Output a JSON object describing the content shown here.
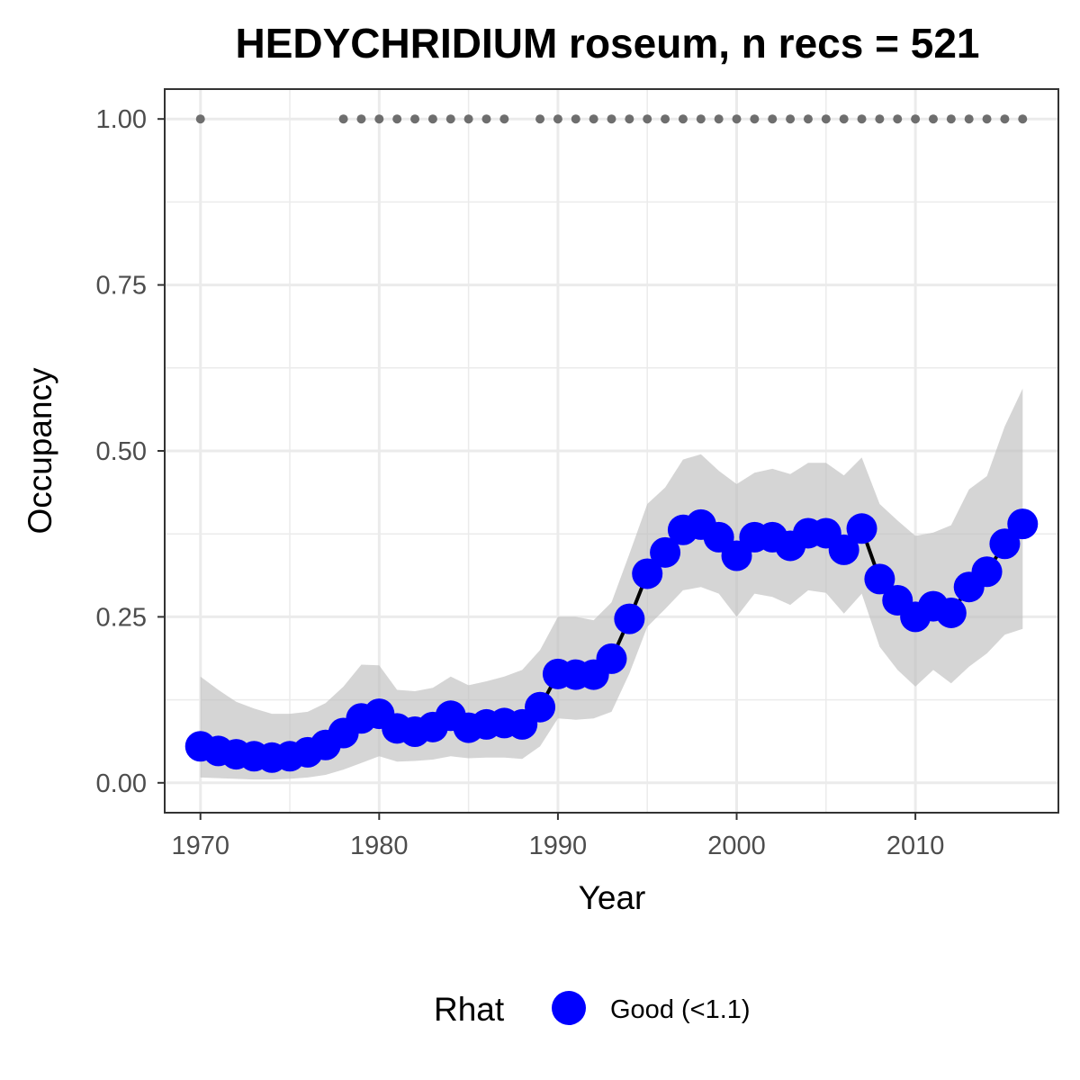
{
  "chart_data": {
    "type": "line",
    "title": "HEDYCHRIDIUM roseum, n recs = 521",
    "xlabel": "Year",
    "ylabel": "Occupancy",
    "xlim": [
      1968,
      2018
    ],
    "ylim": [
      -0.045,
      1.045
    ],
    "xticks": [
      1970,
      1980,
      1990,
      2000,
      2010
    ],
    "xtick_labels": [
      "1970",
      "1980",
      "1990",
      "2000",
      "2010"
    ],
    "yticks": [
      0,
      0.25,
      0.5,
      0.75,
      1
    ],
    "ytick_labels": [
      "0.00",
      "0.25",
      "0.50",
      "0.75",
      "1.00"
    ],
    "grid": true,
    "legend_position": "bottom",
    "legend": {
      "title": "Rhat",
      "entries": [
        {
          "label": "Good (<1.1)",
          "color": "#0000ff"
        }
      ]
    },
    "colors": {
      "line": "#000000",
      "points": "#0000ff",
      "ribbon": "#bfbfbf",
      "record_dots": "#6e6e6e",
      "grid": "#ebebeb",
      "panel_border": "#333333"
    },
    "x": [
      1970,
      1971,
      1972,
      1973,
      1974,
      1975,
      1976,
      1977,
      1978,
      1979,
      1980,
      1981,
      1982,
      1983,
      1984,
      1985,
      1986,
      1987,
      1988,
      1989,
      1990,
      1991,
      1992,
      1993,
      1994,
      1995,
      1996,
      1997,
      1998,
      1999,
      2000,
      2001,
      2002,
      2003,
      2004,
      2005,
      2006,
      2007,
      2008,
      2009,
      2010,
      2011,
      2012,
      2013,
      2014,
      2015,
      2016
    ],
    "series": [
      {
        "name": "Good (<1.1)",
        "values": [
          0.055,
          0.048,
          0.043,
          0.04,
          0.038,
          0.04,
          0.046,
          0.057,
          0.075,
          0.097,
          0.104,
          0.082,
          0.077,
          0.084,
          0.101,
          0.083,
          0.088,
          0.09,
          0.088,
          0.114,
          0.164,
          0.163,
          0.163,
          0.187,
          0.247,
          0.315,
          0.347,
          0.381,
          0.389,
          0.37,
          0.342,
          0.37,
          0.37,
          0.357,
          0.376,
          0.376,
          0.351,
          0.383,
          0.307,
          0.275,
          0.25,
          0.266,
          0.256,
          0.295,
          0.318,
          0.36,
          0.39
        ],
        "lower": [
          0.008,
          0.007,
          0.006,
          0.005,
          0.005,
          0.006,
          0.008,
          0.012,
          0.02,
          0.03,
          0.04,
          0.032,
          0.033,
          0.035,
          0.04,
          0.037,
          0.038,
          0.038,
          0.036,
          0.055,
          0.097,
          0.095,
          0.097,
          0.107,
          0.165,
          0.235,
          0.262,
          0.29,
          0.295,
          0.285,
          0.25,
          0.285,
          0.28,
          0.268,
          0.29,
          0.286,
          0.255,
          0.285,
          0.205,
          0.17,
          0.145,
          0.17,
          0.15,
          0.175,
          0.195,
          0.223,
          0.232
        ],
        "upper": [
          0.16,
          0.14,
          0.122,
          0.112,
          0.104,
          0.104,
          0.107,
          0.12,
          0.145,
          0.178,
          0.177,
          0.14,
          0.138,
          0.143,
          0.16,
          0.147,
          0.153,
          0.16,
          0.17,
          0.2,
          0.25,
          0.25,
          0.245,
          0.272,
          0.345,
          0.42,
          0.445,
          0.487,
          0.495,
          0.47,
          0.45,
          0.467,
          0.473,
          0.465,
          0.482,
          0.482,
          0.463,
          0.49,
          0.42,
          0.395,
          0.372,
          0.377,
          0.388,
          0.442,
          0.462,
          0.537,
          0.594
        ]
      }
    ],
    "record_years": [
      1970,
      1978,
      1979,
      1980,
      1981,
      1982,
      1983,
      1984,
      1985,
      1986,
      1987,
      1989,
      1990,
      1991,
      1992,
      1993,
      1994,
      1995,
      1996,
      1997,
      1998,
      1999,
      2000,
      2001,
      2002,
      2003,
      2004,
      2005,
      2006,
      2007,
      2008,
      2009,
      2010,
      2011,
      2012,
      2013,
      2014,
      2015,
      2016
    ],
    "record_value": 1.0
  }
}
